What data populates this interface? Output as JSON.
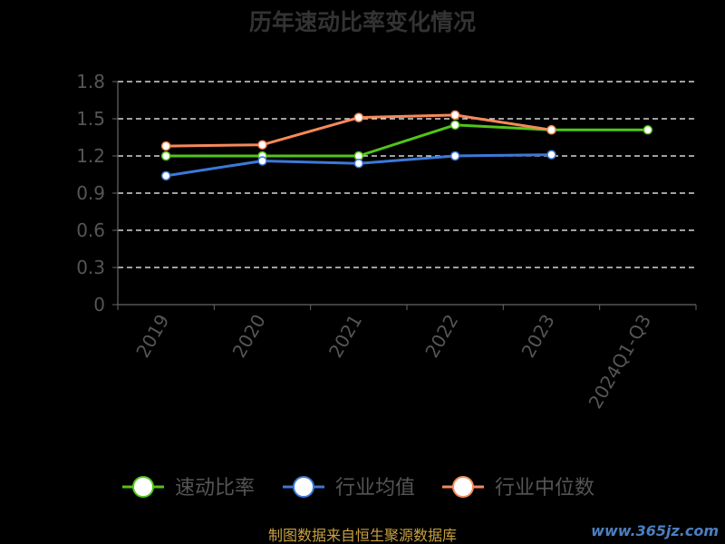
{
  "chart_data": {
    "type": "line",
    "title": "历年速动比率变化情况",
    "categories": [
      "2019",
      "2020",
      "2021",
      "2022",
      "2023",
      "2024Q1-Q3"
    ],
    "y_ticks": [
      "0",
      "0.3",
      "0.6",
      "0.9",
      "1.2",
      "1.5",
      "1.8"
    ],
    "ylim": [
      0,
      1.8
    ],
    "grid": true,
    "legend_position": "bottom",
    "series": [
      {
        "name": "速动比率",
        "color": "#52c41a",
        "values": [
          1.2,
          1.2,
          1.2,
          1.45,
          1.41,
          1.41
        ]
      },
      {
        "name": "行业均值",
        "color": "#3c78d8",
        "values": [
          1.04,
          1.16,
          1.14,
          1.2,
          1.21,
          null
        ]
      },
      {
        "name": "行业中位数",
        "color": "#f58a5a",
        "values": [
          1.28,
          1.29,
          1.51,
          1.53,
          1.41,
          null
        ]
      }
    ]
  },
  "footer": {
    "source": "制图数据来自恒生聚源数据库",
    "watermark": "www.365jz.com"
  }
}
